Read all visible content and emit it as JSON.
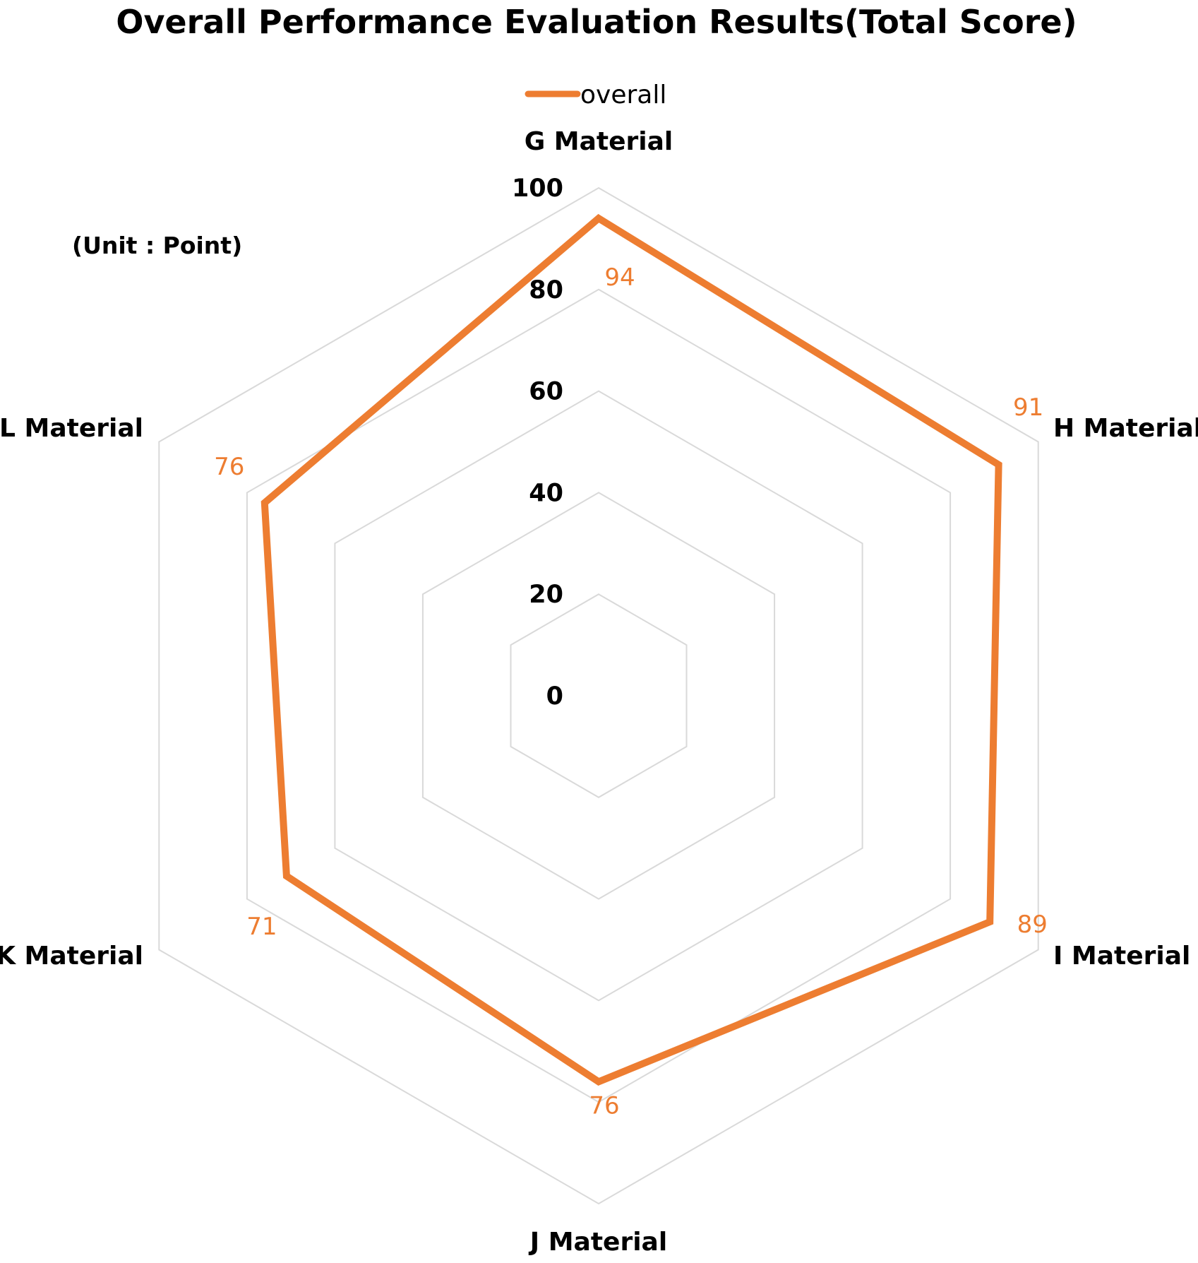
{
  "chart_data": {
    "type": "radar",
    "title": "Overall Performance Evaluation Results(Total Score)",
    "unit_note": "(Unit : Point)",
    "categories": [
      "G Material",
      "H Material",
      "I Material",
      "J Material",
      "K Material",
      "L Material"
    ],
    "series": [
      {
        "name": "overall",
        "values": [
          94,
          91,
          89,
          76,
          71,
          76
        ],
        "color": "#ED7D31"
      }
    ],
    "rlim": [
      0,
      100
    ],
    "ticks": [
      0,
      20,
      40,
      60,
      80,
      100
    ],
    "tick_labels": [
      "0",
      "20",
      "40",
      "60",
      "80",
      "100"
    ],
    "data_labels": [
      "94",
      "91",
      "89",
      "76",
      "71",
      "76"
    ],
    "legend_position": "top",
    "grid": true,
    "grid_color": "#D9D9D9"
  }
}
